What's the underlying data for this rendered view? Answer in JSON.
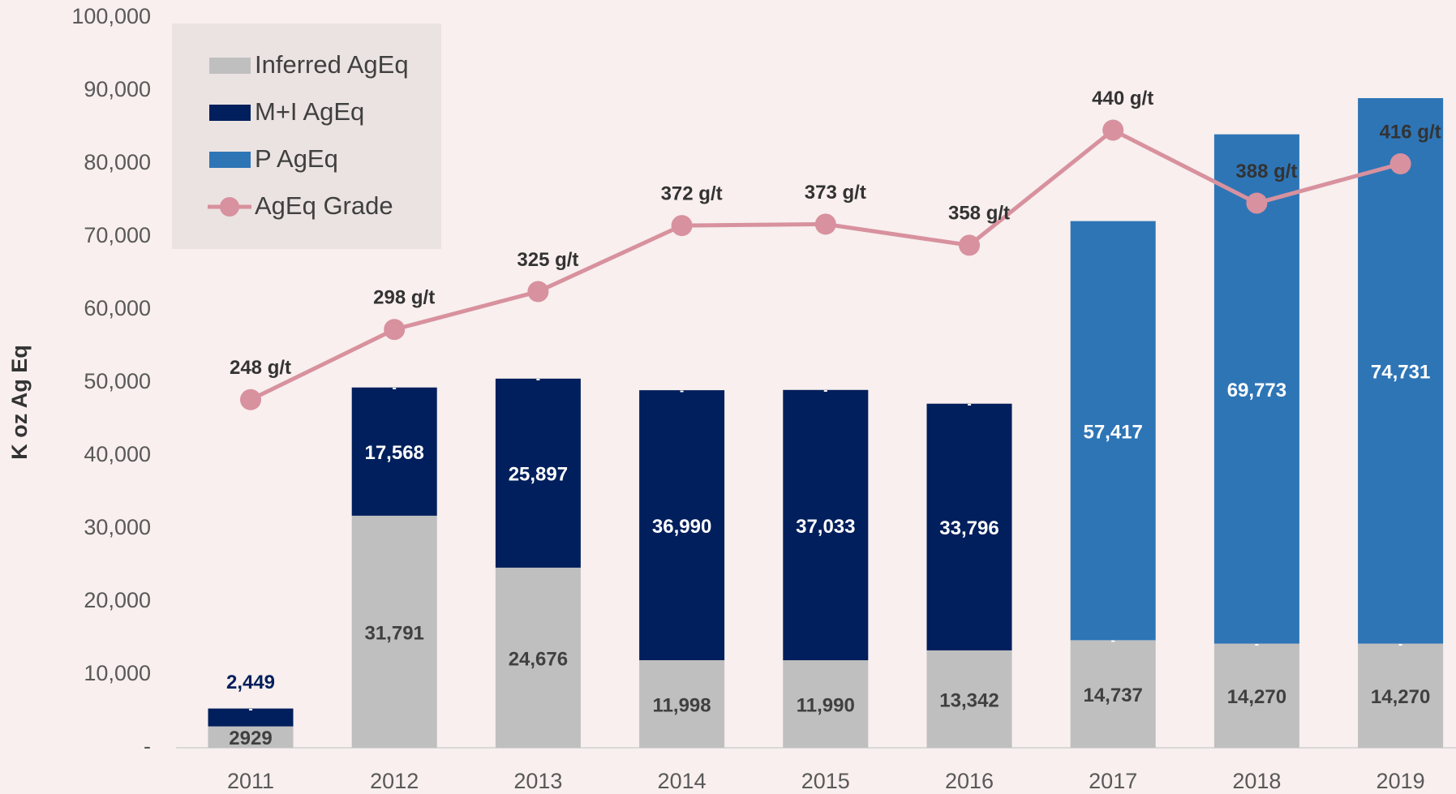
{
  "chart_data": {
    "type": "bar",
    "stacked": true,
    "y_axis_label": "K oz Ag Eq",
    "categories": [
      "2011",
      "2012",
      "2013",
      "2014",
      "2015",
      "2016",
      "2017",
      "2018",
      "2019"
    ],
    "ylim": [
      0,
      100000
    ],
    "yticks": [
      {
        "value": 0,
        "label": "-"
      },
      {
        "value": 10000,
        "label": "10,000"
      },
      {
        "value": 20000,
        "label": "20,000"
      },
      {
        "value": 30000,
        "label": "30,000"
      },
      {
        "value": 40000,
        "label": "40,000"
      },
      {
        "value": 50000,
        "label": "50,000"
      },
      {
        "value": 60000,
        "label": "60,000"
      },
      {
        "value": 70000,
        "label": "70,000"
      },
      {
        "value": 80000,
        "label": "80,000"
      },
      {
        "value": 90000,
        "label": "90,000"
      },
      {
        "value": 100000,
        "label": "100,000"
      }
    ],
    "y2lim": [
      0,
      520
    ],
    "grid": false,
    "legend": "upper left",
    "series": [
      {
        "name": "Inferred AgEq",
        "color": "#bfbfbf",
        "label_color": "#404040",
        "values": [
          2929,
          31791,
          24676,
          11998,
          11990,
          13342,
          14737,
          14270,
          14270
        ],
        "value_labels": [
          "2929",
          "31,791",
          "24,676",
          "11,998",
          "11,990",
          "13,342",
          "14,737",
          "14,270",
          "14,270"
        ]
      },
      {
        "name": "M+I AgEq",
        "color": "#001f5c",
        "label_color": "#ffffff",
        "values": [
          2449,
          17568,
          25897,
          36990,
          37033,
          33796,
          0,
          0,
          0
        ],
        "value_labels": [
          "2,449",
          "17,568",
          "25,897",
          "36,990",
          "37,033",
          "33,796",
          "-",
          "-",
          "-"
        ]
      },
      {
        "name": "P AgEq",
        "color": "#2e75b6",
        "label_color": "#ffffff",
        "values": [
          0,
          0,
          0,
          0,
          0,
          0,
          57417,
          69773,
          74731
        ],
        "value_labels": [
          "-",
          "-",
          "-",
          "-",
          "-",
          "-",
          "57,417",
          "69,773",
          "74,731"
        ]
      },
      {
        "name": "AgEq Grade",
        "type": "line",
        "axis": "y2",
        "color": "#d8919e",
        "label_color": "#333333",
        "values": [
          248,
          298,
          325,
          372,
          373,
          358,
          440,
          388,
          416
        ],
        "value_labels": [
          "248 g/t",
          "298 g/t",
          "325 g/t",
          "372 g/t",
          "373 g/t",
          "358 g/t",
          "440 g/t",
          "388 g/t",
          "416 g/t"
        ]
      }
    ]
  }
}
